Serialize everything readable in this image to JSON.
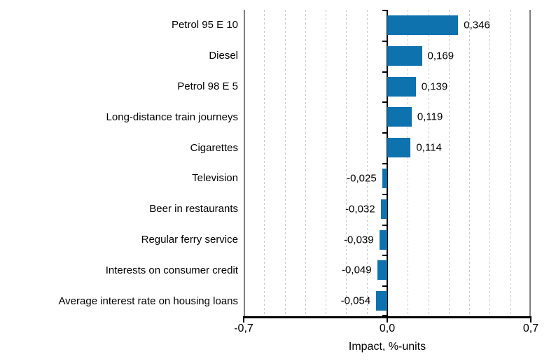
{
  "chart_data": {
    "type": "bar",
    "orientation": "horizontal",
    "title": "",
    "xlabel": "Impact, %-units",
    "ylabel": "",
    "xlim": [
      -0.7,
      0.7
    ],
    "gridline_interval": 0.1,
    "grid_on": true,
    "legend": "none",
    "categories": [
      "Petrol 95 E 10",
      "Diesel",
      "Petrol 98 E 5",
      "Long-distance train journeys",
      "Cigarettes",
      "Television",
      "Beer in restaurants",
      "Regular ferry service",
      "Interests on consumer credit",
      "Average interest rate on housing loans"
    ],
    "values": [
      0.346,
      0.169,
      0.139,
      0.119,
      0.114,
      -0.025,
      -0.032,
      -0.039,
      -0.049,
      -0.054
    ],
    "value_labels": [
      "0,346",
      "0,169",
      "0,139",
      "0,119",
      "0,114",
      "-0,025",
      "-0,032",
      "-0,039",
      "-0,049",
      "-0,054"
    ],
    "x_tick_values": [
      -0.7,
      0.0,
      0.7
    ],
    "x_tick_labels": [
      "-0,7",
      "0,0",
      "0,7"
    ],
    "colors": {
      "bar": "#0d72ae",
      "grid": "#c9c9c9",
      "frame": "#7f7f7f",
      "axis": "#000000",
      "text": "#000000",
      "background": "#ffffff"
    }
  }
}
